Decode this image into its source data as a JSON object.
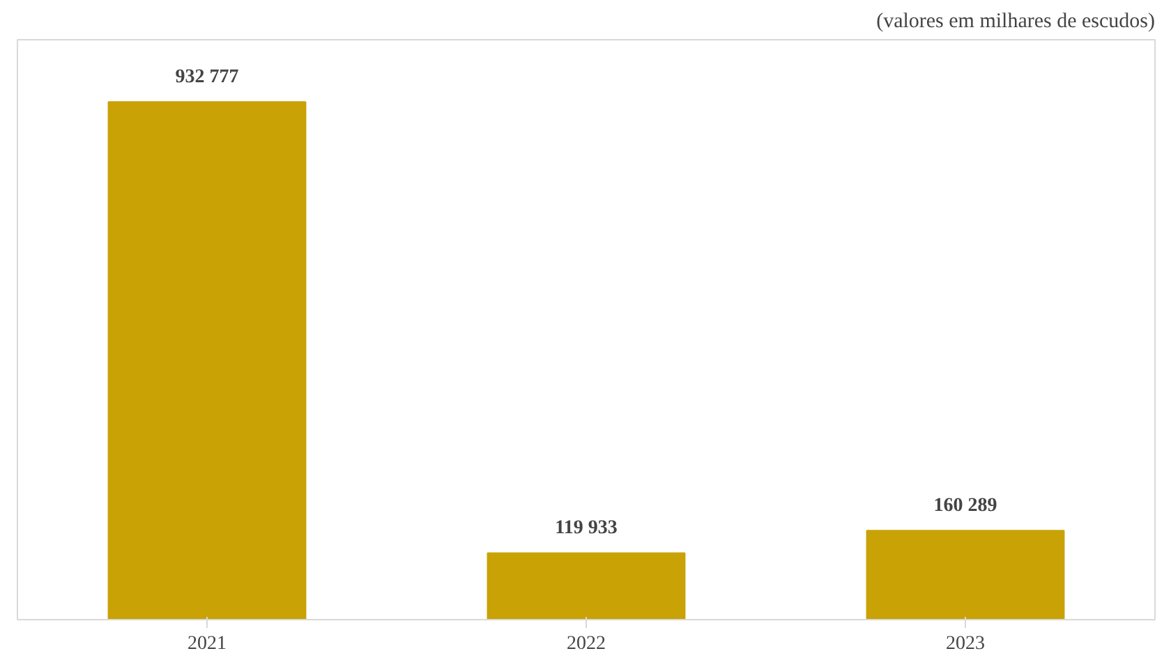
{
  "chart_data": {
    "type": "bar",
    "annotations": [
      "(valores em milhares de escudos)"
    ],
    "categories": [
      "2021",
      "2022",
      "2023"
    ],
    "values": [
      932777,
      119933,
      160289
    ],
    "value_labels": [
      "932 777",
      "119 933",
      "160 289"
    ],
    "color": "#c9a206",
    "grid": false
  }
}
